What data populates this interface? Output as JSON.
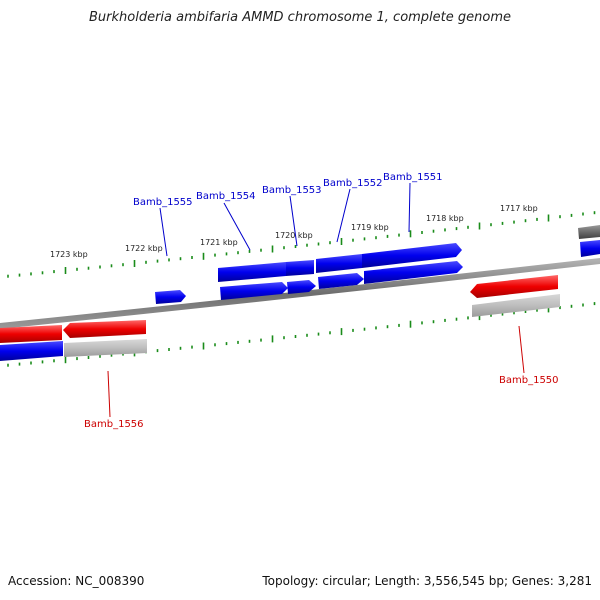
{
  "title": "Burkholderia ambifaria AMMD chromosome 1, complete genome",
  "footer": {
    "accession_label": "Accession:",
    "accession": "NC_008390",
    "summary": "Topology: circular; Length: 3,556,545 bp; Genes: 3,281"
  },
  "colors": {
    "forward_gene": "#0000ee",
    "reverse_gene": "#ee0000",
    "backbone": "#808080",
    "ticks": "#1a8c1a",
    "forward_label": "#0000cc",
    "reverse_label": "#cc0000"
  },
  "scale_labels": [
    "1723 kbp",
    "1722 kbp",
    "1721 kbp",
    "1720 kbp",
    "1719 kbp",
    "1718 kbp",
    "1717 kbp"
  ],
  "genes": [
    {
      "name": "Bamb_1555",
      "strand": "forward"
    },
    {
      "name": "Bamb_1554",
      "strand": "forward"
    },
    {
      "name": "Bamb_1553",
      "strand": "forward"
    },
    {
      "name": "Bamb_1552",
      "strand": "forward"
    },
    {
      "name": "Bamb_1551",
      "strand": "forward"
    },
    {
      "name": "Bamb_1556",
      "strand": "reverse"
    },
    {
      "name": "Bamb_1550",
      "strand": "reverse"
    }
  ]
}
